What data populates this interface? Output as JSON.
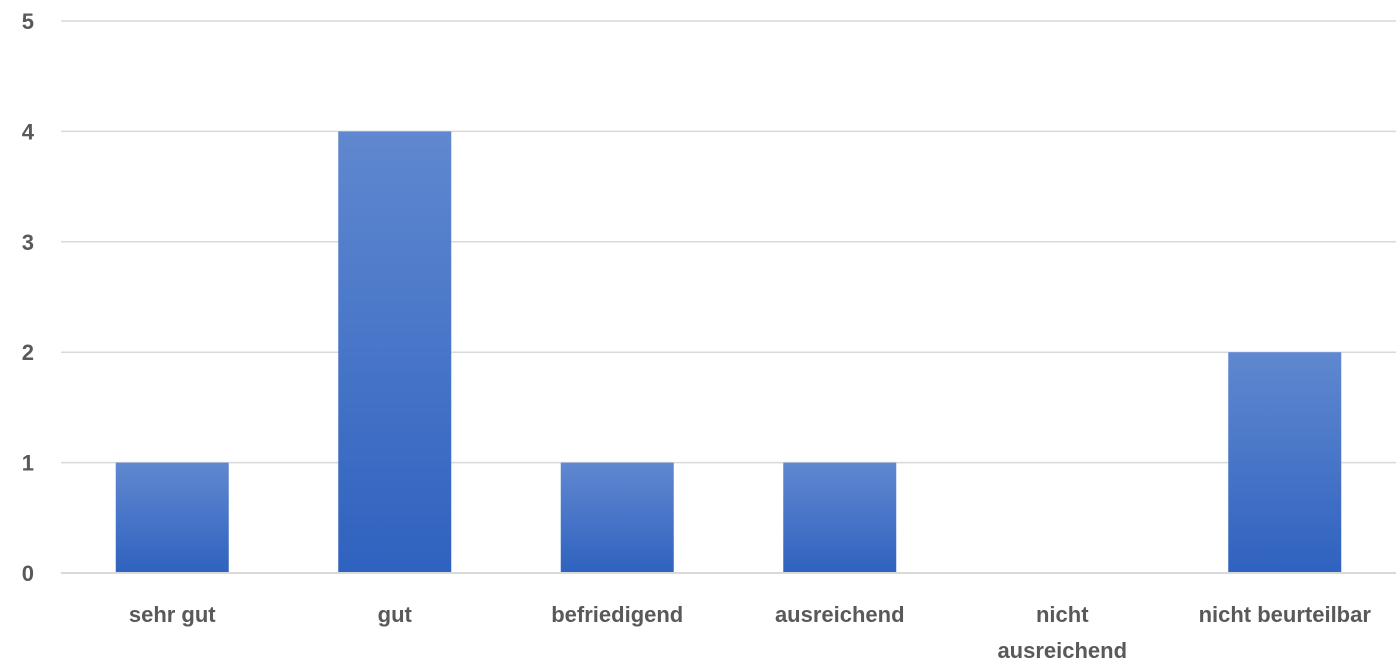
{
  "chart_data": {
    "type": "bar",
    "categories": [
      "sehr gut",
      "gut",
      "befriedigend",
      "ausreichend",
      "nicht ausreichend",
      "nicht beurteilbar"
    ],
    "category_lines": [
      [
        "sehr gut"
      ],
      [
        "gut"
      ],
      [
        "befriedigend"
      ],
      [
        "ausreichend"
      ],
      [
        "nicht",
        "ausreichend"
      ],
      [
        "nicht beurteilbar"
      ]
    ],
    "values": [
      1,
      4,
      1,
      1,
      0,
      2
    ],
    "title": "",
    "xlabel": "",
    "ylabel": "",
    "ylim": [
      0,
      5
    ],
    "yticks": [
      "0",
      "1",
      "2",
      "3",
      "4",
      "5"
    ],
    "grid": true,
    "legend": "none",
    "colors": {
      "bar_top": "#6088D0",
      "bar_bottom": "#2F62BF",
      "grid": "#D9D9D9",
      "text": "#595959"
    }
  }
}
